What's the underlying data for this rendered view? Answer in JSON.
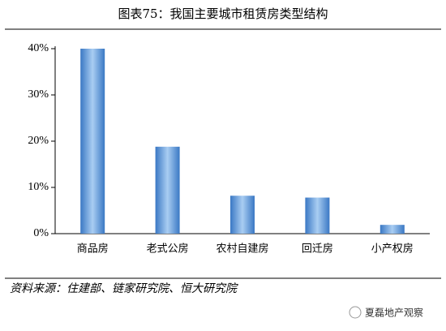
{
  "chart_data": {
    "type": "bar",
    "title": "图表75：我国主要城市租赁房类型结构",
    "categories": [
      "商品房",
      "老式公房",
      "农村自建房",
      "回迁房",
      "小产权房"
    ],
    "values": [
      40,
      18.8,
      8.2,
      7.8,
      1.9
    ],
    "color": "#4f8fd6",
    "ylim": [
      0,
      40
    ],
    "yticks": [
      {
        "value": 0,
        "label": "0%"
      },
      {
        "value": 10,
        "label": "10%"
      },
      {
        "value": 20,
        "label": "20%"
      },
      {
        "value": 30,
        "label": "30%"
      },
      {
        "value": 40,
        "label": "40%"
      }
    ],
    "grid": false,
    "source": "资料来源：住建部、链家研究院、恒大研究院",
    "watermark": "夏磊地产观察"
  }
}
